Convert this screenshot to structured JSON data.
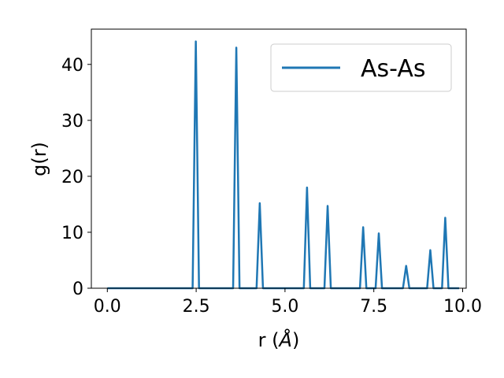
{
  "chart_data": {
    "type": "line",
    "xlabel_main": "r (",
    "xlabel_unit": "Å",
    "xlabel_close": ")",
    "ylabel": "g(r)",
    "xlim": [
      -0.45,
      10.1
    ],
    "ylim": [
      0,
      46.3
    ],
    "xticks": [
      0.0,
      2.5,
      5.0,
      7.5,
      10.0
    ],
    "xtick_labels": [
      "0.0",
      "2.5",
      "5.0",
      "7.5",
      "10.0"
    ],
    "yticks": [
      0,
      10,
      20,
      30,
      40
    ],
    "ytick_labels": [
      "0",
      "10",
      "20",
      "30",
      "40"
    ],
    "grid": false,
    "legend_position": "top-right",
    "series": [
      {
        "name": "As-As",
        "color": "#1f77b4",
        "x": [
          0.0,
          2.4,
          2.49,
          2.58,
          3.54,
          3.63,
          3.72,
          4.2,
          4.29,
          4.38,
          5.53,
          5.62,
          5.71,
          6.11,
          6.2,
          6.29,
          7.11,
          7.2,
          7.29,
          7.55,
          7.64,
          7.73,
          8.32,
          8.41,
          8.5,
          9.0,
          9.09,
          9.18,
          9.42,
          9.51,
          9.6,
          9.9
        ],
        "y": [
          0,
          0,
          44.1,
          0,
          0,
          43.0,
          0,
          0,
          15.2,
          0,
          0,
          18.0,
          0,
          0,
          14.7,
          0,
          0,
          10.9,
          0,
          0,
          9.8,
          0,
          0,
          4.0,
          0,
          0,
          6.8,
          0,
          0,
          12.6,
          0,
          0
        ]
      }
    ]
  }
}
